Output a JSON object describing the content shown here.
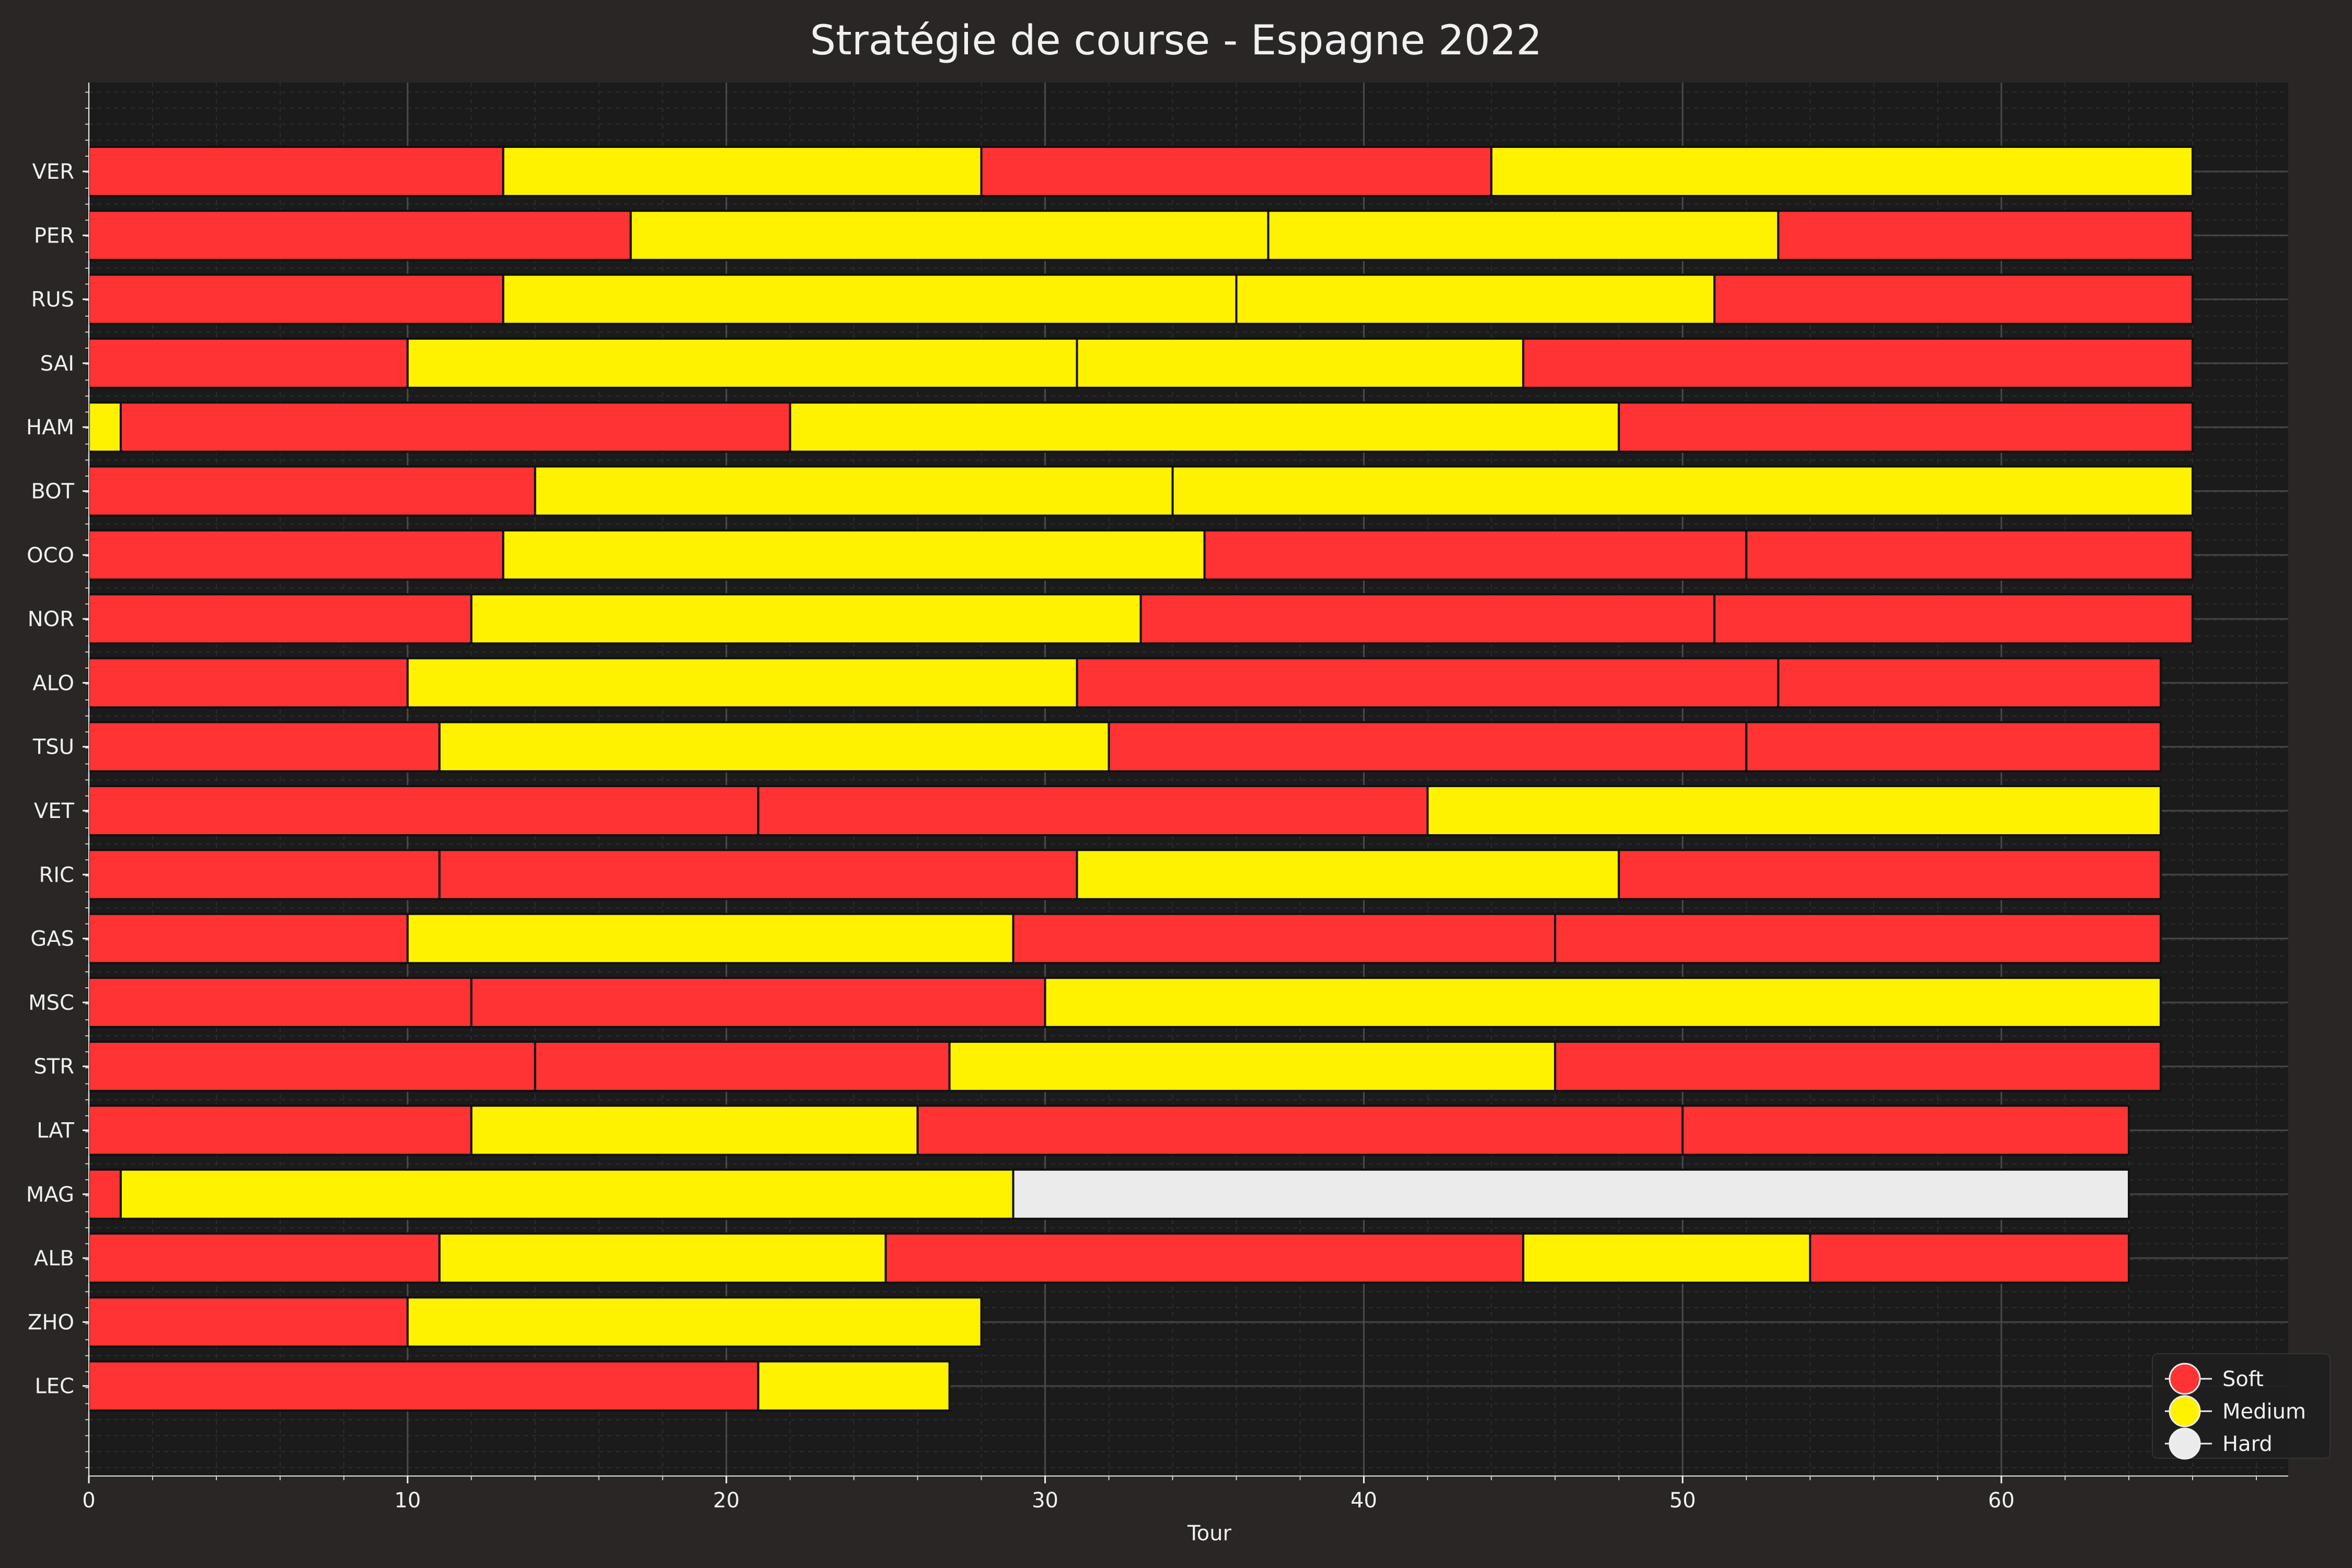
{
  "chart_data": {
    "type": "bar",
    "orientation": "horizontal-stacked",
    "title": "Stratégie de course - Espagne 2022",
    "xlabel": "Tour",
    "ylabel": "",
    "xlim": [
      0,
      69
    ],
    "xticks": [
      0,
      10,
      20,
      30,
      40,
      50,
      60
    ],
    "grid": true,
    "legend_position": "bottom-right",
    "compounds": [
      {
        "name": "Soft",
        "color": "#ff3333"
      },
      {
        "name": "Medium",
        "color": "#fff200"
      },
      {
        "name": "Hard",
        "color": "#ebebeb"
      }
    ],
    "drivers": [
      {
        "driver": "VER",
        "stints": [
          {
            "compound": "Soft",
            "start": 0,
            "end": 13
          },
          {
            "compound": "Medium",
            "start": 13,
            "end": 28
          },
          {
            "compound": "Soft",
            "start": 28,
            "end": 44
          },
          {
            "compound": "Medium",
            "start": 44,
            "end": 66
          }
        ]
      },
      {
        "driver": "PER",
        "stints": [
          {
            "compound": "Soft",
            "start": 0,
            "end": 17
          },
          {
            "compound": "Medium",
            "start": 17,
            "end": 37
          },
          {
            "compound": "Medium",
            "start": 37,
            "end": 53
          },
          {
            "compound": "Soft",
            "start": 53,
            "end": 66
          }
        ]
      },
      {
        "driver": "RUS",
        "stints": [
          {
            "compound": "Soft",
            "start": 0,
            "end": 13
          },
          {
            "compound": "Medium",
            "start": 13,
            "end": 36
          },
          {
            "compound": "Medium",
            "start": 36,
            "end": 51
          },
          {
            "compound": "Soft",
            "start": 51,
            "end": 66
          }
        ]
      },
      {
        "driver": "SAI",
        "stints": [
          {
            "compound": "Soft",
            "start": 0,
            "end": 10
          },
          {
            "compound": "Medium",
            "start": 10,
            "end": 31
          },
          {
            "compound": "Medium",
            "start": 31,
            "end": 45
          },
          {
            "compound": "Soft",
            "start": 45,
            "end": 66
          }
        ]
      },
      {
        "driver": "HAM",
        "stints": [
          {
            "compound": "Medium",
            "start": 0,
            "end": 1
          },
          {
            "compound": "Soft",
            "start": 1,
            "end": 22
          },
          {
            "compound": "Medium",
            "start": 22,
            "end": 48
          },
          {
            "compound": "Soft",
            "start": 48,
            "end": 66
          }
        ]
      },
      {
        "driver": "BOT",
        "stints": [
          {
            "compound": "Soft",
            "start": 0,
            "end": 14
          },
          {
            "compound": "Medium",
            "start": 14,
            "end": 34
          },
          {
            "compound": "Medium",
            "start": 34,
            "end": 66
          }
        ]
      },
      {
        "driver": "OCO",
        "stints": [
          {
            "compound": "Soft",
            "start": 0,
            "end": 13
          },
          {
            "compound": "Medium",
            "start": 13,
            "end": 35
          },
          {
            "compound": "Soft",
            "start": 35,
            "end": 52
          },
          {
            "compound": "Soft",
            "start": 52,
            "end": 66
          }
        ]
      },
      {
        "driver": "NOR",
        "stints": [
          {
            "compound": "Soft",
            "start": 0,
            "end": 12
          },
          {
            "compound": "Medium",
            "start": 12,
            "end": 33
          },
          {
            "compound": "Soft",
            "start": 33,
            "end": 51
          },
          {
            "compound": "Soft",
            "start": 51,
            "end": 66
          }
        ]
      },
      {
        "driver": "ALO",
        "stints": [
          {
            "compound": "Soft",
            "start": 0,
            "end": 10
          },
          {
            "compound": "Medium",
            "start": 10,
            "end": 31
          },
          {
            "compound": "Soft",
            "start": 31,
            "end": 53
          },
          {
            "compound": "Soft",
            "start": 53,
            "end": 65
          }
        ]
      },
      {
        "driver": "TSU",
        "stints": [
          {
            "compound": "Soft",
            "start": 0,
            "end": 11
          },
          {
            "compound": "Medium",
            "start": 11,
            "end": 32
          },
          {
            "compound": "Soft",
            "start": 32,
            "end": 52
          },
          {
            "compound": "Soft",
            "start": 52,
            "end": 65
          }
        ]
      },
      {
        "driver": "VET",
        "stints": [
          {
            "compound": "Soft",
            "start": 0,
            "end": 21
          },
          {
            "compound": "Soft",
            "start": 21,
            "end": 42
          },
          {
            "compound": "Medium",
            "start": 42,
            "end": 65
          }
        ]
      },
      {
        "driver": "RIC",
        "stints": [
          {
            "compound": "Soft",
            "start": 0,
            "end": 11
          },
          {
            "compound": "Soft",
            "start": 11,
            "end": 31
          },
          {
            "compound": "Medium",
            "start": 31,
            "end": 48
          },
          {
            "compound": "Soft",
            "start": 48,
            "end": 65
          }
        ]
      },
      {
        "driver": "GAS",
        "stints": [
          {
            "compound": "Soft",
            "start": 0,
            "end": 10
          },
          {
            "compound": "Medium",
            "start": 10,
            "end": 29
          },
          {
            "compound": "Soft",
            "start": 29,
            "end": 46
          },
          {
            "compound": "Soft",
            "start": 46,
            "end": 65
          }
        ]
      },
      {
        "driver": "MSC",
        "stints": [
          {
            "compound": "Soft",
            "start": 0,
            "end": 12
          },
          {
            "compound": "Soft",
            "start": 12,
            "end": 30
          },
          {
            "compound": "Medium",
            "start": 30,
            "end": 65
          }
        ]
      },
      {
        "driver": "STR",
        "stints": [
          {
            "compound": "Soft",
            "start": 0,
            "end": 14
          },
          {
            "compound": "Soft",
            "start": 14,
            "end": 27
          },
          {
            "compound": "Medium",
            "start": 27,
            "end": 46
          },
          {
            "compound": "Soft",
            "start": 46,
            "end": 65
          }
        ]
      },
      {
        "driver": "LAT",
        "stints": [
          {
            "compound": "Soft",
            "start": 0,
            "end": 12
          },
          {
            "compound": "Medium",
            "start": 12,
            "end": 26
          },
          {
            "compound": "Soft",
            "start": 26,
            "end": 50
          },
          {
            "compound": "Soft",
            "start": 50,
            "end": 64
          }
        ]
      },
      {
        "driver": "MAG",
        "stints": [
          {
            "compound": "Soft",
            "start": 0,
            "end": 1
          },
          {
            "compound": "Medium",
            "start": 1,
            "end": 29
          },
          {
            "compound": "Hard",
            "start": 29,
            "end": 64
          }
        ]
      },
      {
        "driver": "ALB",
        "stints": [
          {
            "compound": "Soft",
            "start": 0,
            "end": 11
          },
          {
            "compound": "Medium",
            "start": 11,
            "end": 25
          },
          {
            "compound": "Soft",
            "start": 25,
            "end": 45
          },
          {
            "compound": "Medium",
            "start": 45,
            "end": 54
          },
          {
            "compound": "Soft",
            "start": 54,
            "end": 64
          }
        ]
      },
      {
        "driver": "ZHO",
        "stints": [
          {
            "compound": "Soft",
            "start": 0,
            "end": 10
          },
          {
            "compound": "Medium",
            "start": 10,
            "end": 28
          }
        ]
      },
      {
        "driver": "LEC",
        "stints": [
          {
            "compound": "Soft",
            "start": 0,
            "end": 21
          },
          {
            "compound": "Medium",
            "start": 21,
            "end": 27
          }
        ]
      }
    ]
  }
}
